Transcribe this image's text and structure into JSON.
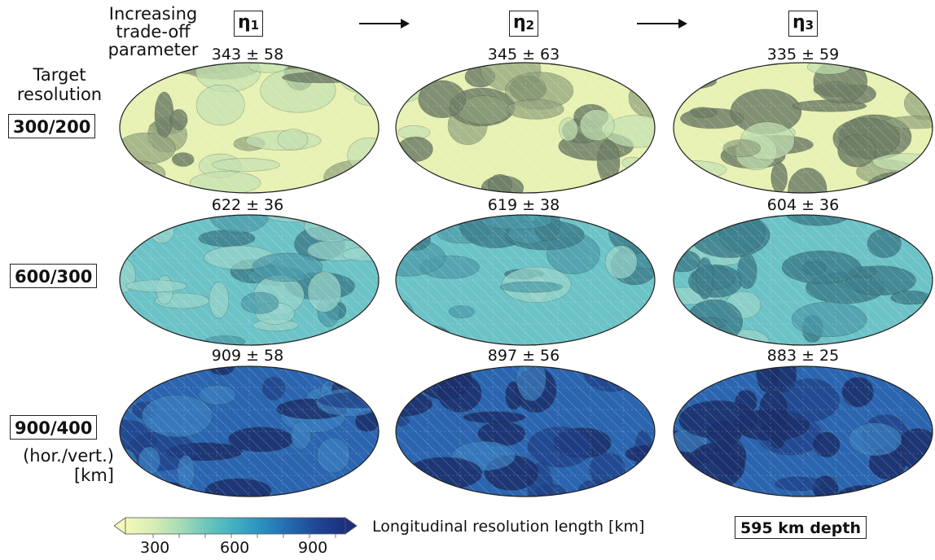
{
  "header": {
    "title_line1": "Increasing",
    "title_line2": "trade-off parameter",
    "eta_base": "η",
    "columns": [
      {
        "label": "η",
        "sub": "1"
      },
      {
        "label": "η",
        "sub": "2"
      },
      {
        "label": "η",
        "sub": "3"
      }
    ]
  },
  "rows_header": {
    "line1": "Target",
    "line2": "resolution"
  },
  "rows": [
    {
      "target": "300/200",
      "stats": [
        "343 ± 58",
        "345 ± 63",
        "335 ± 59"
      ]
    },
    {
      "target": "600/300",
      "stats": [
        "622 ± 36",
        "619 ± 38",
        "604 ± 36"
      ]
    },
    {
      "target": "900/400",
      "stats": [
        "909 ± 58",
        "897 ± 56",
        "883 ± 25"
      ]
    }
  ],
  "units_note": {
    "line1": "(hor./vert.)",
    "line2": "[km]"
  },
  "colorbar": {
    "label": "Longitudinal resolution length [km]",
    "ticks": [
      "300",
      "600",
      "900"
    ],
    "colors": [
      "#f3f8b8",
      "#d9eeb4",
      "#a6dcb6",
      "#6cc5bd",
      "#3fafc3",
      "#2a8fc0",
      "#2468ae",
      "#1f4797",
      "#1b2f7e"
    ]
  },
  "depth_label": "595 km depth",
  "map_colors": {
    "row1": {
      "base": "#e7f1b3",
      "patch_a": "#c2e0b0",
      "patch_b": "#8fa07b",
      "dark": "#6f7f66"
    },
    "row2": {
      "base": "#6cc3c7",
      "patch_a": "#9ad4ca",
      "patch_b": "#4a98a8",
      "dark": "#3d7f8c"
    },
    "row3": {
      "base": "#2b65b0",
      "patch_a": "#3c80c0",
      "patch_b": "#1f3f86",
      "dark": "#1b2f6b"
    }
  }
}
